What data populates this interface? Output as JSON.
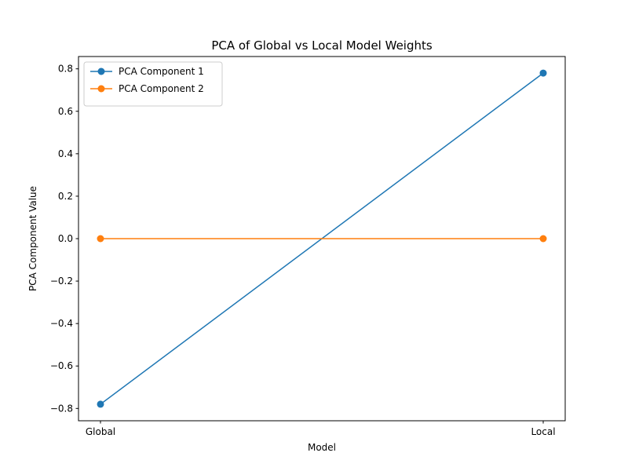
{
  "chart_data": {
    "type": "line",
    "title": "PCA of Global vs Local Model Weights",
    "xlabel": "Model",
    "ylabel": "PCA Component Value",
    "categories": [
      "Global",
      "Local"
    ],
    "ylim": [
      -0.858,
      0.858
    ],
    "yticks": [
      -0.8,
      -0.6,
      -0.4,
      -0.2,
      0.0,
      0.2,
      0.4,
      0.6,
      0.8
    ],
    "ytick_labels": [
      "−0.8",
      "−0.6",
      "−0.4",
      "−0.2",
      "0.0",
      "0.2",
      "0.4",
      "0.6",
      "0.8"
    ],
    "grid": false,
    "legend_position": "top-left",
    "series": [
      {
        "name": "PCA Component 1",
        "values": [
          -0.78,
          0.78
        ],
        "color": "#1f77b4",
        "marker": "circle"
      },
      {
        "name": "PCA Component 2",
        "values": [
          0.0,
          0.0
        ],
        "color": "#ff7f0e",
        "marker": "circle"
      }
    ]
  }
}
